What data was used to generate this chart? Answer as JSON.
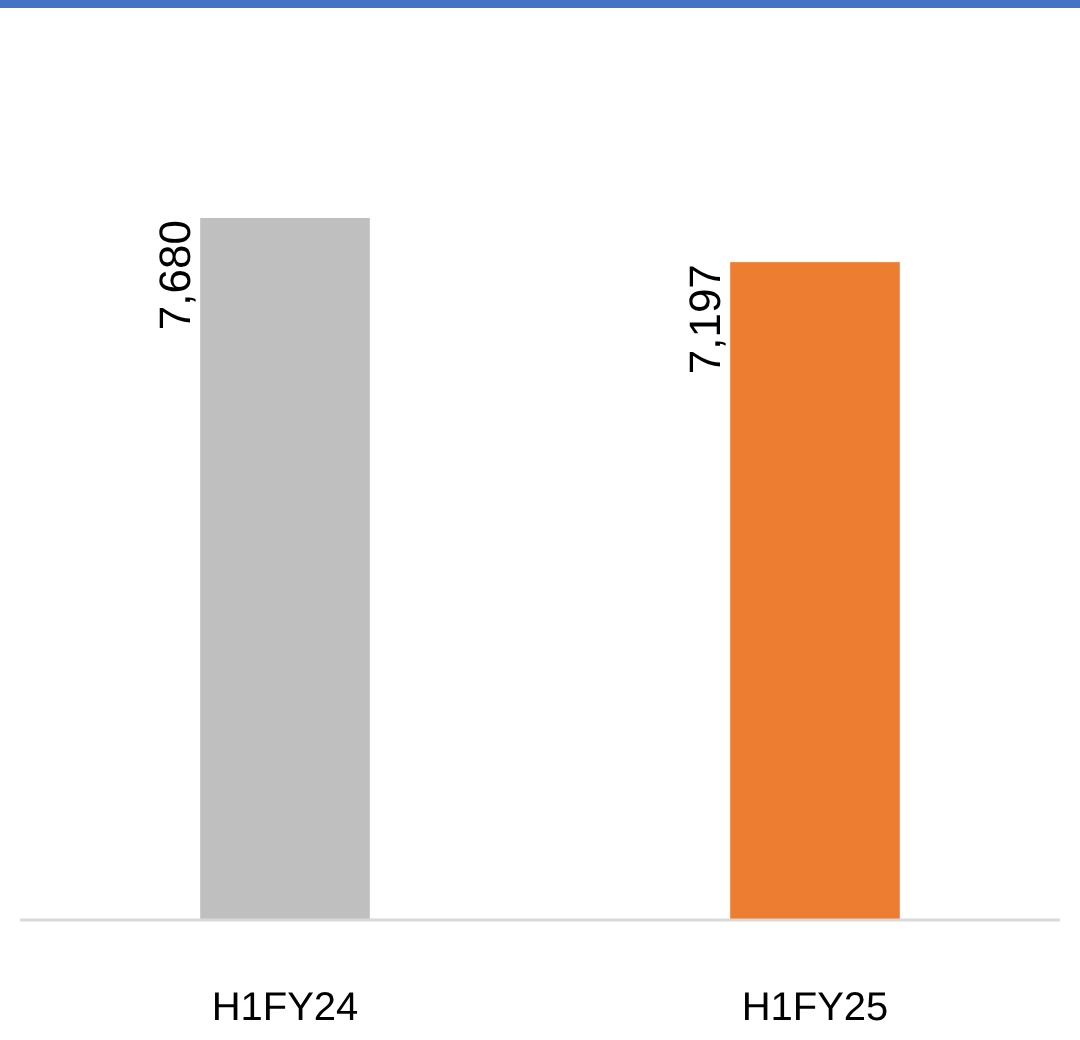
{
  "chart_data": {
    "type": "bar",
    "categories": [
      "H1FY24",
      "H1FY25"
    ],
    "values": [
      7680,
      7197
    ],
    "colors": [
      "#bfbfbf",
      "#ed7d31"
    ],
    "value_labels": [
      "7,680",
      "7,197"
    ]
  }
}
